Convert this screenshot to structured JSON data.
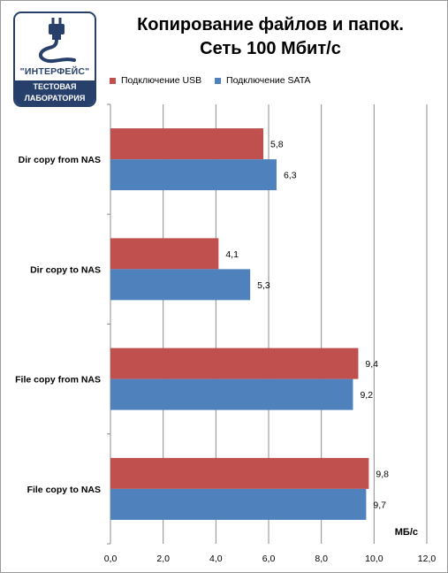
{
  "logo": {
    "name": "\"ИНТЕРФЕЙС\"",
    "line1": "ТЕСТОВАЯ",
    "line2": "ЛАБОРАТОРИЯ"
  },
  "title_line1": "Копирование файлов и папок.",
  "title_line2": "Сеть 100 Мбит/с",
  "colors": {
    "usb": "#c0504d",
    "sata": "#4f81bd",
    "grid": "#8c8c8c",
    "logo": "#27406b"
  },
  "chart_data": {
    "type": "bar",
    "orientation": "horizontal",
    "categories": [
      "Dir copy from NAS",
      "Dir copy to NAS",
      "File copy from NAS",
      "File copy to NAS"
    ],
    "series": [
      {
        "name": "Подключение USB",
        "values": [
          5.8,
          4.1,
          9.4,
          9.8
        ],
        "labels": [
          "5,8",
          "4,1",
          "9,4",
          "9,8"
        ]
      },
      {
        "name": "Подключение SATA",
        "values": [
          6.3,
          5.3,
          9.2,
          9.7
        ],
        "labels": [
          "6,3",
          "5,3",
          "9,2",
          "9,7"
        ]
      }
    ],
    "xlim": [
      0,
      12
    ],
    "xticks": [
      0,
      2,
      4,
      6,
      8,
      10,
      12
    ],
    "xtick_labels": [
      "0,0",
      "2,0",
      "4,0",
      "6,0",
      "8,0",
      "10,0",
      "12,0"
    ],
    "xlabel": "МБ/с",
    "grid": true,
    "legend_position": "top"
  }
}
